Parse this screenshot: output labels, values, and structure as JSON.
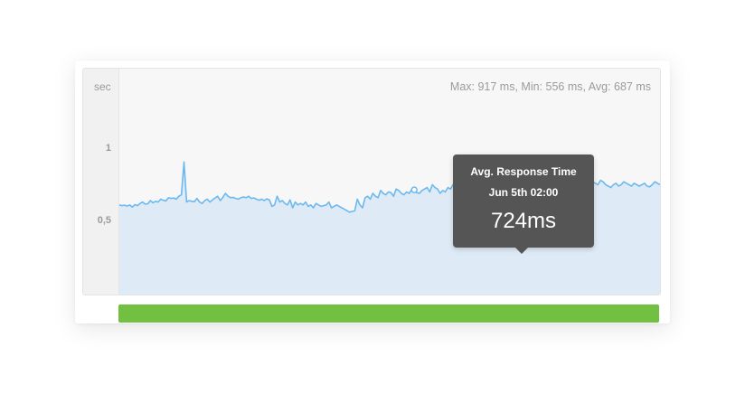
{
  "colors": {
    "line": "#6cb9ef",
    "area": "#deeaf6",
    "status_bar": "#72c041",
    "tooltip_bg": "#555555"
  },
  "chart_data": {
    "type": "area",
    "title": "",
    "xlabel": "",
    "ylabel": "sec",
    "y_unit_label": "sec",
    "y_ticks": [
      "1",
      "0,5"
    ],
    "ylim": [
      0,
      1.5
    ],
    "grid": false,
    "stats_text": "Max: 917 ms, Min: 556 ms, Avg: 687 ms",
    "series": [
      {
        "values_ms": [
          620,
          615,
          618,
          612,
          620,
          605,
          622,
          615,
          630,
          640,
          625,
          628,
          650,
          635,
          645,
          640,
          660,
          652,
          648,
          670,
          665,
          668,
          660,
          680,
          690,
          917,
          640,
          650,
          645,
          642,
          665,
          640,
          630,
          650,
          660,
          640,
          655,
          668,
          680,
          650,
          672,
          700,
          680,
          670,
          672,
          665,
          660,
          670,
          675,
          670,
          680,
          665,
          668,
          660,
          652,
          660,
          650,
          662,
          655,
          610,
          620,
          680,
          640,
          650,
          630,
          620,
          655,
          600,
          640,
          620,
          630,
          620,
          640,
          610,
          620,
          600,
          630,
          620,
          610,
          615,
          620,
          640,
          600,
          610,
          620,
          610,
          600,
          590,
          580,
          570,
          575,
          580,
          660,
          620,
          600,
          670,
          680,
          660,
          700,
          680,
          670,
          720,
          700,
          690,
          710,
          705,
          680,
          730,
          720,
          700,
          690,
          710,
          700,
          724,
          710,
          705,
          700,
          720,
          730,
          740,
          710,
          760,
          740,
          730,
          700,
          720,
          710,
          740,
          730,
          760,
          740,
          760,
          770,
          750,
          730,
          760,
          740,
          780,
          750,
          720,
          760,
          770,
          740,
          760,
          780,
          820,
          760,
          740,
          730,
          770,
          750,
          760,
          780,
          740,
          730,
          820,
          740,
          720,
          760,
          770,
          780,
          760,
          740,
          760,
          780,
          750,
          720,
          740,
          760,
          780,
          760,
          730,
          740,
          760,
          780,
          770,
          760,
          790,
          780,
          760,
          740,
          760,
          790,
          780,
          770,
          760,
          790,
          780,
          760,
          750,
          740,
          760,
          770,
          750,
          760,
          780,
          770,
          760,
          750,
          770,
          760,
          750,
          760,
          770,
          750,
          745,
          760,
          780,
          770,
          760
        ]
      }
    ],
    "tooltip": {
      "title": "Avg. Response Time",
      "time": "Jun 5th 02:00",
      "value": "724ms",
      "value_ms": 724,
      "point_index": 114
    }
  }
}
